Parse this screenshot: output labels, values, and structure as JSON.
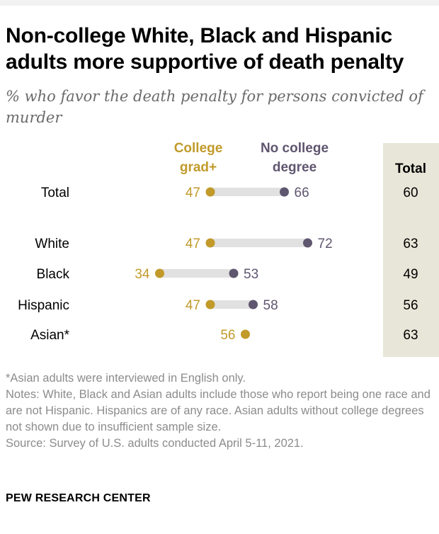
{
  "header": {
    "title": "Non-college White, Black and Hispanic adults more supportive of death penalty",
    "subtitle": "% who favor the death penalty for persons convicted of murder"
  },
  "chart_data": {
    "type": "dot",
    "title": "Non-college White, Black and Hispanic adults more supportive of death penalty",
    "subtitle": "% who favor the death penalty for persons convicted of murder",
    "series": [
      {
        "name": "College grad+",
        "label_lines": [
          "College",
          "grad+"
        ],
        "color": "#c19a2a"
      },
      {
        "name": "No college degree",
        "label_lines": [
          "No college",
          "degree"
        ],
        "color": "#5f566f"
      }
    ],
    "total_column_label": "Total",
    "rows": [
      {
        "category": "Total",
        "college": 47,
        "no_college": 66,
        "total": 60
      },
      {
        "category": "White",
        "college": 47,
        "no_college": 72,
        "total": 63
      },
      {
        "category": "Black",
        "college": 34,
        "no_college": 53,
        "total": 49
      },
      {
        "category": "Hispanic",
        "college": 47,
        "no_college": 58,
        "total": 56
      },
      {
        "category": "Asian*",
        "college": 56,
        "no_college": null,
        "total": 63
      }
    ],
    "connector_color": "#e1e1e1",
    "total_panel_color": "#e8e6d8"
  },
  "footnotes": [
    "*Asian adults were interviewed in English only.",
    "Notes: White, Black and Asian adults include those who report being one race and are not Hispanic. Hispanics are of any race. Asian adults without college degrees not shown due to insufficient sample size.",
    "Source: Survey of U.S. adults conducted April 5-11, 2021."
  ],
  "brand": "PEW RESEARCH CENTER"
}
